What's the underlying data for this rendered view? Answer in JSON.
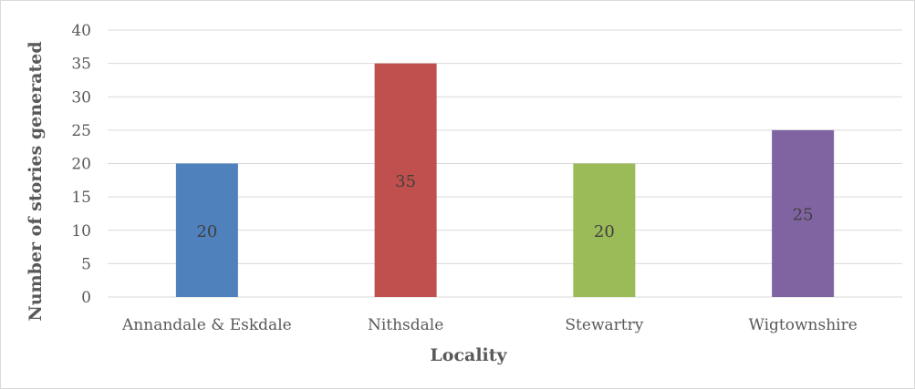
{
  "chart_data": {
    "type": "bar",
    "title": "",
    "xlabel": "Locality",
    "ylabel": "Number of stories generated",
    "categories": [
      "Annandale & Eskdale",
      "Nithsdale",
      "Stewartry",
      "Wigtownshire"
    ],
    "values": [
      20,
      35,
      20,
      25
    ],
    "colors": [
      "#4f81bd",
      "#c0504d",
      "#9bbb59",
      "#8064a2"
    ],
    "ylim": [
      0,
      40
    ],
    "ytick_step": 5,
    "grid": true,
    "legend": "none"
  }
}
